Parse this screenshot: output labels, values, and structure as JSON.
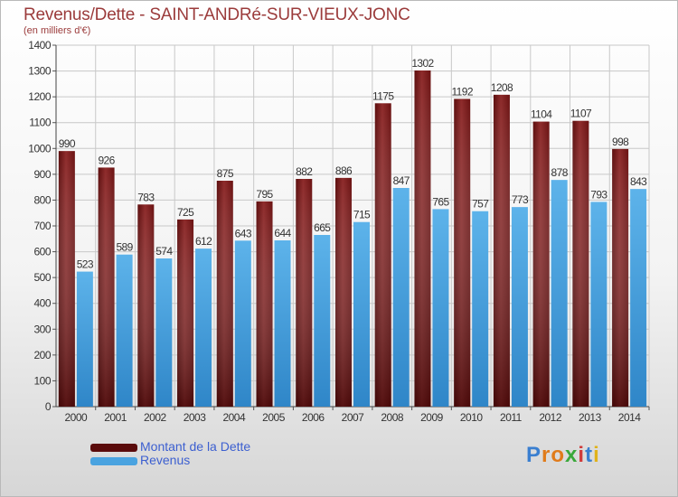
{
  "title": "Revenus/Dette - SAINT-ANDRé-SUR-VIEUX-JONC",
  "subtitle": "(en milliers d'€)",
  "colors": {
    "debt": "#7a1a1a",
    "debt_dark": "#4a0505",
    "revenue": "#4aa3e0",
    "revenue_dark": "#2a7ec0",
    "title": "#9b3b3b",
    "legend_text": "#3c5fd0"
  },
  "legend": [
    {
      "label": "Montant de la Dette",
      "color": "#5a0b0b"
    },
    {
      "label": "Revenus",
      "color": "#4aa3e0"
    }
  ],
  "logo": {
    "text": "Proxiti"
  },
  "chart_data": {
    "type": "bar",
    "categories": [
      "2000",
      "2001",
      "2002",
      "2003",
      "2004",
      "2005",
      "2006",
      "2007",
      "2008",
      "2009",
      "2010",
      "2011",
      "2012",
      "2013",
      "2014"
    ],
    "series": [
      {
        "name": "Montant de la Dette",
        "values": [
          990,
          926,
          783,
          725,
          875,
          795,
          882,
          886,
          1175,
          1302,
          1192,
          1208,
          1104,
          1107,
          998
        ]
      },
      {
        "name": "Revenus",
        "values": [
          523,
          589,
          574,
          612,
          643,
          644,
          665,
          715,
          847,
          765,
          757,
          773,
          878,
          793,
          843
        ]
      }
    ],
    "ylim": [
      0,
      1400
    ],
    "yticks": [
      0,
      100,
      200,
      300,
      400,
      500,
      600,
      700,
      800,
      900,
      1000,
      1100,
      1200,
      1300,
      1400
    ],
    "grid": true,
    "legend_position": "bottom-left"
  }
}
